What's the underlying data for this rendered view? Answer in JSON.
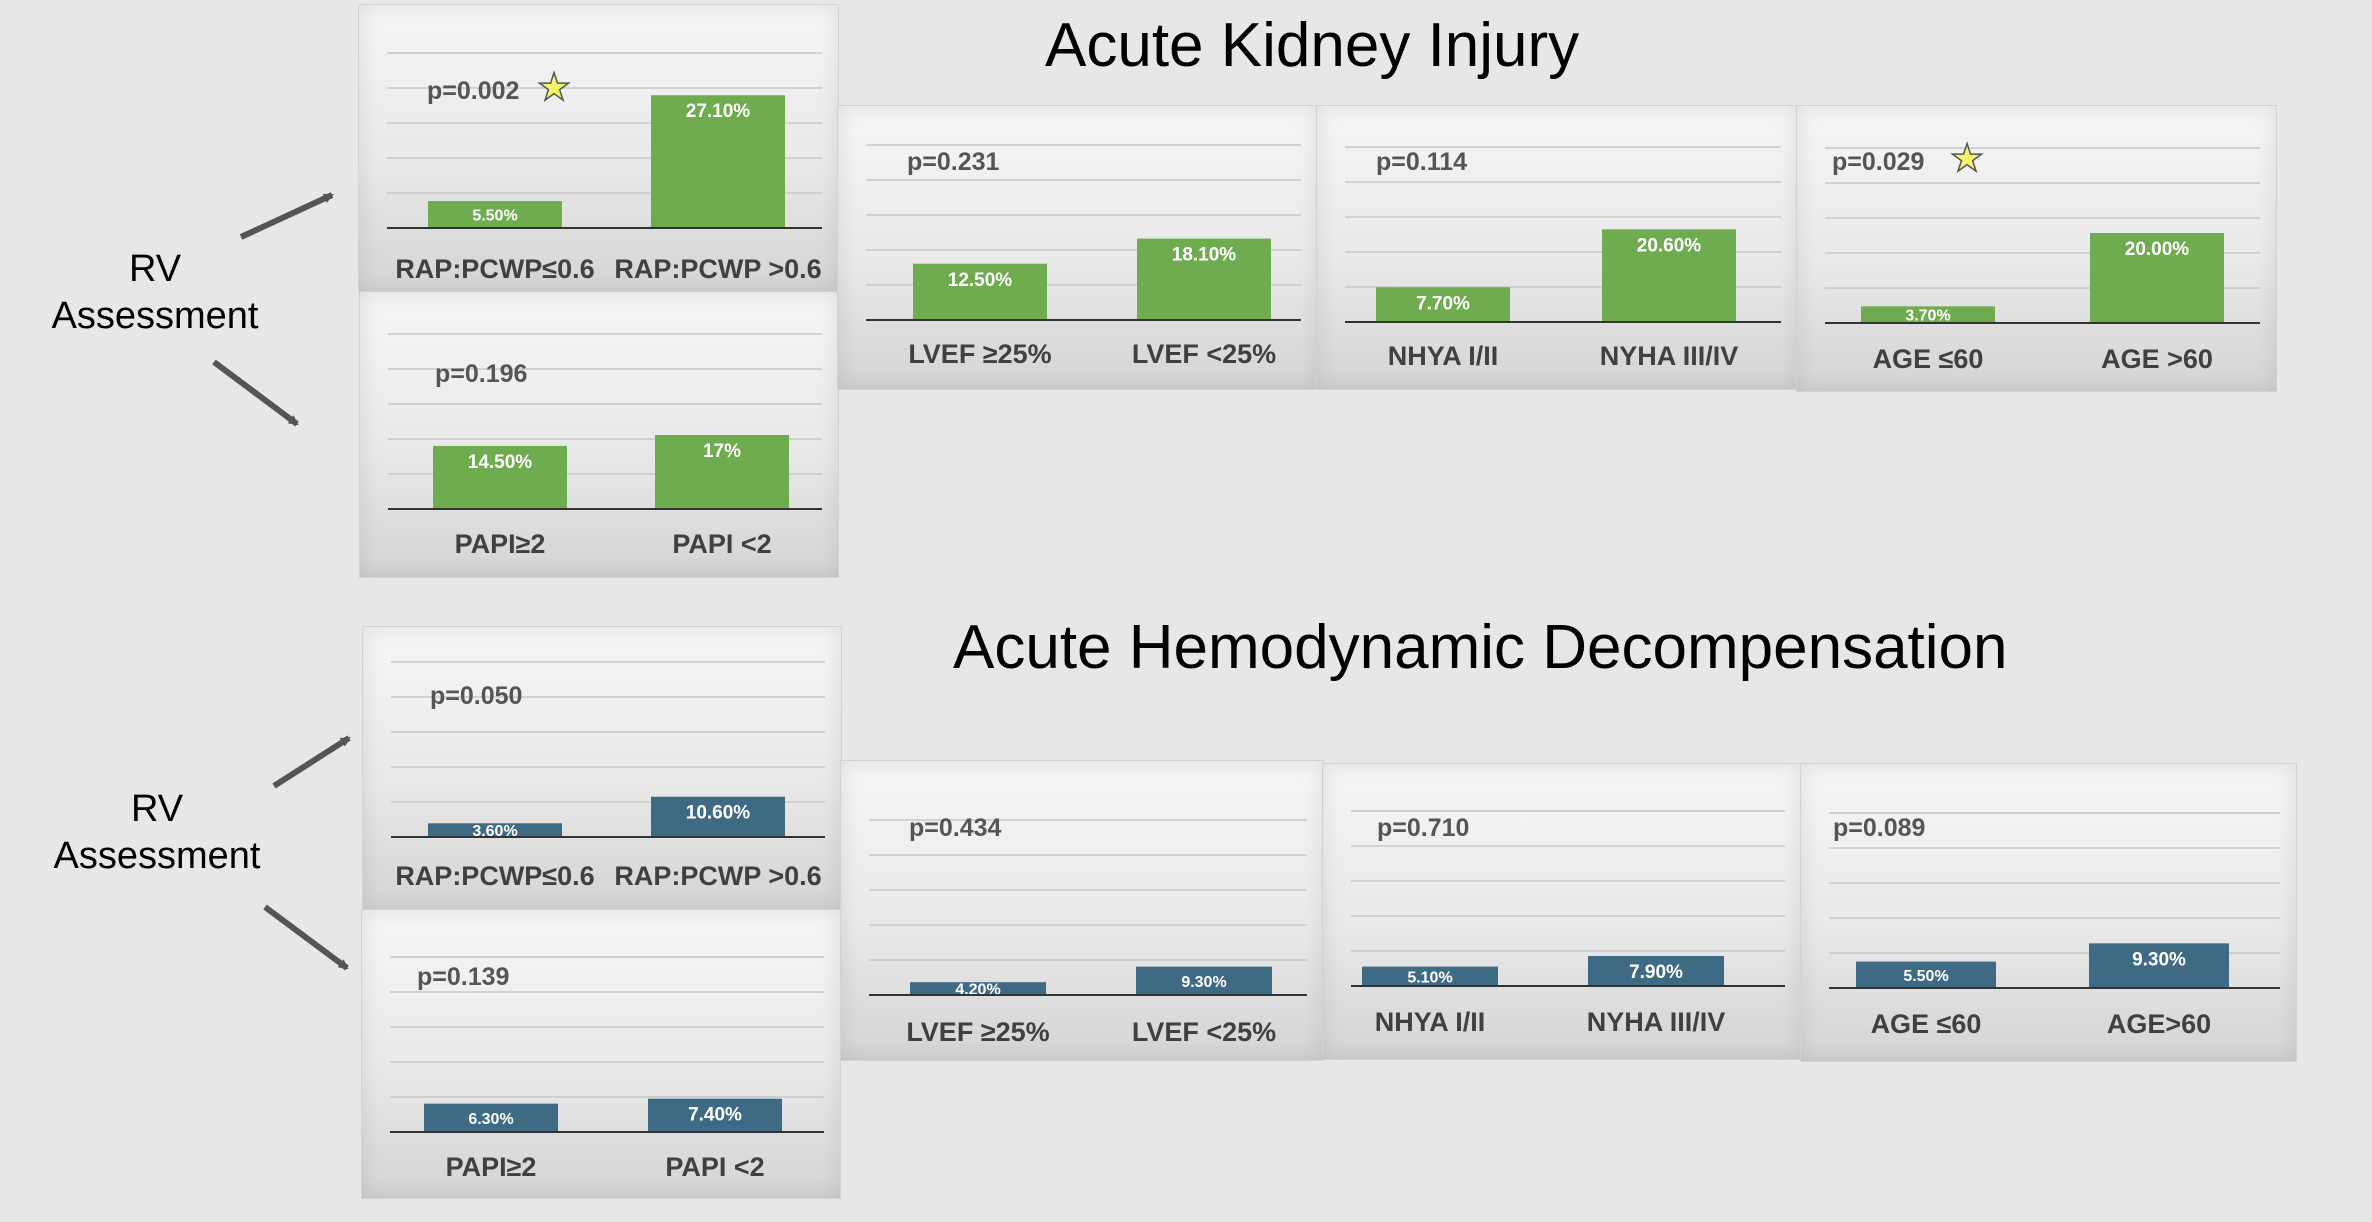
{
  "headers": {
    "aki_title": "Acute Kidney Injury",
    "ahd_title": "Acute Hemodynamic Decompensation"
  },
  "rv_label": {
    "line1": "RV",
    "line2": "Assessment"
  },
  "colors": {
    "aki_bar": "#6fab4f",
    "ahd_bar": "#3f6a84",
    "star": "#f4f46a"
  },
  "chart_data": [
    {
      "id": "aki-rap",
      "type": "bar",
      "outcome": "Acute Kidney Injury",
      "categories": [
        "RAP:PCWP≤0.6",
        "RAP:PCWP >0.6"
      ],
      "values": [
        5.5,
        27.1
      ],
      "labels": [
        "5.50%",
        "27.10%"
      ],
      "p_value": "p=0.002",
      "significant": true,
      "ylim": [
        0,
        30
      ]
    },
    {
      "id": "aki-papi",
      "type": "bar",
      "outcome": "Acute Kidney Injury",
      "categories": [
        "PAPI≥2",
        "PAPI <2"
      ],
      "values": [
        14.5,
        17
      ],
      "labels": [
        "14.50%",
        "17%"
      ],
      "p_value": "p=0.196",
      "significant": false,
      "ylim": [
        0,
        20
      ]
    },
    {
      "id": "aki-lvef",
      "type": "bar",
      "outcome": "Acute Kidney Injury",
      "categories": [
        "LVEF ≥25%",
        "LVEF <25%"
      ],
      "values": [
        12.5,
        18.1
      ],
      "labels": [
        "12.50%",
        "18.10%"
      ],
      "p_value": "p=0.231",
      "significant": false,
      "ylim": [
        0,
        25
      ]
    },
    {
      "id": "aki-nyha",
      "type": "bar",
      "outcome": "Acute Kidney Injury",
      "categories": [
        "NHYA I/II",
        "NYHA III/IV"
      ],
      "values": [
        7.7,
        20.6
      ],
      "labels": [
        "7.70%",
        "20.60%"
      ],
      "p_value": "p=0.114",
      "significant": false,
      "ylim": [
        0,
        25
      ]
    },
    {
      "id": "aki-age",
      "type": "bar",
      "outcome": "Acute Kidney Injury",
      "categories": [
        "AGE ≤60",
        "AGE >60"
      ],
      "values": [
        3.7,
        20.0
      ],
      "labels": [
        "3.70%",
        "20.00%"
      ],
      "p_value": "p=0.029",
      "significant": true,
      "ylim": [
        0,
        25
      ]
    },
    {
      "id": "ahd-rap",
      "type": "bar",
      "outcome": "Acute Hemodynamic Decompensation",
      "categories": [
        "RAP:PCWP≤0.6",
        "RAP:PCWP >0.6"
      ],
      "values": [
        3.6,
        10.6
      ],
      "labels": [
        "3.60%",
        "10.60%"
      ],
      "p_value": "p=0.050",
      "significant": false,
      "ylim": [
        0,
        30
      ]
    },
    {
      "id": "ahd-papi",
      "type": "bar",
      "outcome": "Acute Hemodynamic Decompensation",
      "categories": [
        "PAPI≥2",
        "PAPI <2"
      ],
      "values": [
        6.3,
        7.4
      ],
      "labels": [
        "6.30%",
        "7.40%"
      ],
      "p_value": "p=0.139",
      "significant": false,
      "ylim": [
        0,
        30
      ]
    },
    {
      "id": "ahd-lvef",
      "type": "bar",
      "outcome": "Acute Hemodynamic Decompensation",
      "categories": [
        "LVEF ≥25%",
        "LVEF <25%"
      ],
      "values": [
        4.2,
        9.3
      ],
      "labels": [
        "4.20%",
        "9.30%"
      ],
      "p_value": "p=0.434",
      "significant": false,
      "ylim": [
        0,
        30
      ]
    },
    {
      "id": "ahd-nyha",
      "type": "bar",
      "outcome": "Acute Hemodynamic Decompensation",
      "categories": [
        "NHYA I/II",
        "NYHA III/IV"
      ],
      "values": [
        5.1,
        7.9
      ],
      "labels": [
        "5.10%",
        "7.90%"
      ],
      "p_value": "p=0.710",
      "significant": false,
      "ylim": [
        0,
        30
      ]
    },
    {
      "id": "ahd-age",
      "type": "bar",
      "outcome": "Acute Hemodynamic Decompensation",
      "categories": [
        "AGE ≤60",
        "AGE>60"
      ],
      "values": [
        5.5,
        9.3
      ],
      "labels": [
        "5.50%",
        "9.30%"
      ],
      "p_value": "p=0.089",
      "significant": false,
      "ylim": [
        0,
        30
      ]
    }
  ]
}
